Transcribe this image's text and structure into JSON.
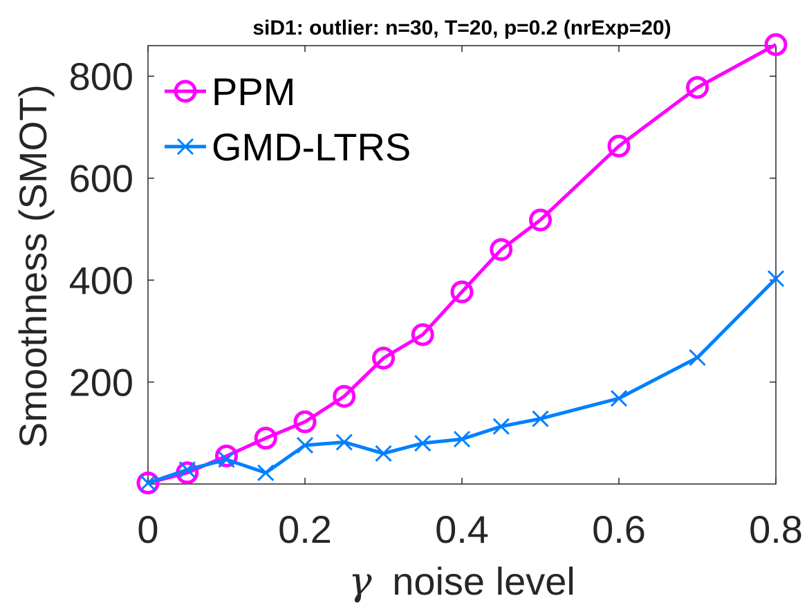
{
  "chart_data": {
    "type": "line",
    "title": "siD1: outlier: n=30, T=20, p=0.2 (nrExp=20)",
    "xlabel_symbol": "γ",
    "xlabel": "noise level",
    "ylabel": "Smoothness (SMOT)",
    "xlim": [
      0,
      0.8
    ],
    "ylim": [
      0,
      860
    ],
    "xticks": [
      0,
      0.2,
      0.4,
      0.6,
      0.8
    ],
    "xtick_labels": [
      "0",
      "0.2",
      "0.4",
      "0.6",
      "0.8"
    ],
    "yticks": [
      200,
      400,
      600,
      800
    ],
    "ytick_labels": [
      "200",
      "400",
      "600",
      "800"
    ],
    "grid": false,
    "legend_position": "top-left",
    "x": [
      0,
      0.05,
      0.1,
      0.15,
      0.2,
      0.25,
      0.3,
      0.35,
      0.4,
      0.45,
      0.5,
      0.6,
      0.7,
      0.8
    ],
    "series": [
      {
        "name": "PPM",
        "marker": "circle",
        "color": "#ff00ff",
        "values": [
          2,
          22,
          55,
          90,
          122,
          172,
          247,
          293,
          377,
          460,
          518,
          663,
          778,
          862
        ]
      },
      {
        "name": "GMD-LTRS",
        "marker": "x",
        "color": "#0080ff",
        "values": [
          2,
          28,
          48,
          22,
          76,
          82,
          60,
          80,
          88,
          113,
          128,
          168,
          248,
          403
        ]
      }
    ]
  }
}
